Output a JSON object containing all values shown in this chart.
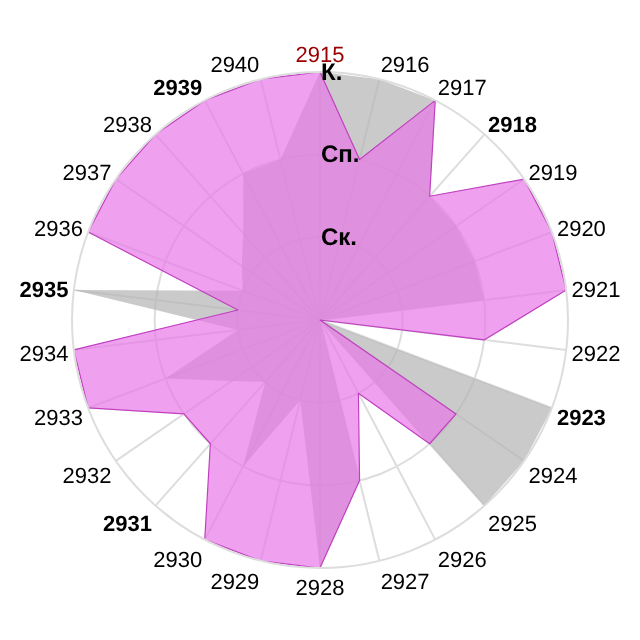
{
  "chart_data": {
    "type": "radar",
    "categories": [
      "2915",
      "2916",
      "2917",
      "2918",
      "2919",
      "2920",
      "2921",
      "2922",
      "2923",
      "2924",
      "2925",
      "2926",
      "2927",
      "2928",
      "2929",
      "2930",
      "2931",
      "2932",
      "2933",
      "2934",
      "2935",
      "2936",
      "2937",
      "2938",
      "2939",
      "2940"
    ],
    "series": [
      {
        "color": "#b4b4b4",
        "values": [
          3,
          3,
          3,
          2,
          2,
          2,
          2,
          0,
          3,
          3,
          3,
          0,
          2,
          3,
          1,
          2,
          1,
          1.3,
          2,
          1,
          3,
          1,
          1.15,
          1.4,
          2,
          2
        ]
      },
      {
        "color": "#e878e8",
        "values": [
          3,
          2,
          3,
          2,
          3,
          3,
          3,
          2,
          0,
          2,
          2,
          1,
          2,
          3,
          3,
          3,
          2,
          2,
          3,
          3,
          1,
          3,
          3,
          3,
          3,
          3
        ]
      }
    ],
    "ylim": [
      0,
      3
    ],
    "yticks": [
      {
        "value": 1,
        "label": "Ск."
      },
      {
        "value": 2,
        "label": "Сп."
      },
      {
        "value": 3,
        "label": "К."
      }
    ],
    "grid": true
  }
}
